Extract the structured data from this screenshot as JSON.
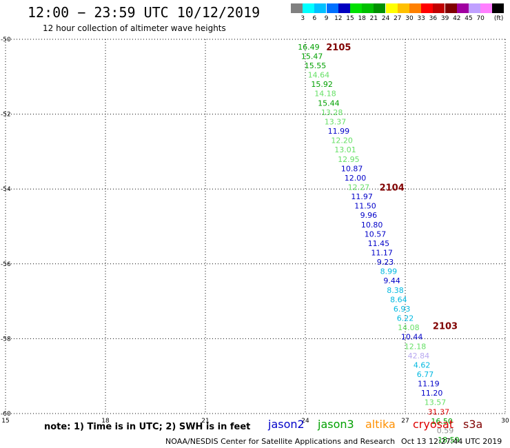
{
  "header": {
    "title": "12:00 − 23:59 UTC 10/12/2019",
    "subtitle": "12 hour collection of altimeter wave heights"
  },
  "legend": {
    "unit": "(ft)",
    "items": [
      {
        "color": "#808080",
        "label": ""
      },
      {
        "color": "#00ffff",
        "label": "3"
      },
      {
        "color": "#00c0ff",
        "label": "6"
      },
      {
        "color": "#0070ff",
        "label": "9"
      },
      {
        "color": "#0000c0",
        "label": "12"
      },
      {
        "color": "#00e000",
        "label": "15"
      },
      {
        "color": "#00c000",
        "label": "18"
      },
      {
        "color": "#009000",
        "label": "21"
      },
      {
        "color": "#ffff00",
        "label": "24"
      },
      {
        "color": "#ffc000",
        "label": "27"
      },
      {
        "color": "#ff8000",
        "label": "30"
      },
      {
        "color": "#ff0000",
        "label": "33"
      },
      {
        "color": "#c00000",
        "label": "36"
      },
      {
        "color": "#800000",
        "label": "39"
      },
      {
        "color": "#a000a0",
        "label": "42"
      },
      {
        "color": "#c0a0ff",
        "label": "45"
      },
      {
        "color": "#ff80ff",
        "label": "70"
      },
      {
        "color": "#000000",
        "label": ""
      }
    ]
  },
  "axes": {
    "x_ticks": [
      "15",
      "18",
      "21",
      "24",
      "27",
      "30"
    ],
    "y_ticks": [
      "-50",
      "-52",
      "-54",
      "-56",
      "-58",
      "-60"
    ],
    "x_range": [
      15,
      30
    ],
    "y_range": [
      -50,
      -60
    ],
    "grid": "dotted"
  },
  "colors": {
    "jason2": "#0000c8",
    "jason3": "#00a000",
    "altika": "#ff9000",
    "cryosat": "#dd0000",
    "s3a": "#800000",
    "lightgreen": "#66e066",
    "cyan": "#00b8e0",
    "lavender": "#b8a8f0",
    "gray": "#909090",
    "time_label": "#800000"
  },
  "observations": [
    {
      "lon": 24.1,
      "lat": -50.2,
      "value": "16.49",
      "color": "#00a000"
    },
    {
      "lon": 24.2,
      "lat": -50.45,
      "value": "15.47",
      "color": "#00a000"
    },
    {
      "lon": 24.3,
      "lat": -50.7,
      "value": "15.55",
      "color": "#00a000"
    },
    {
      "lon": 24.4,
      "lat": -50.95,
      "value": "14.64",
      "color": "#66e066"
    },
    {
      "lon": 24.5,
      "lat": -51.2,
      "value": "15.92",
      "color": "#00a000"
    },
    {
      "lon": 24.6,
      "lat": -51.45,
      "value": "14.18",
      "color": "#66e066"
    },
    {
      "lon": 24.7,
      "lat": -51.7,
      "value": "15.44",
      "color": "#00a000"
    },
    {
      "lon": 24.8,
      "lat": -51.95,
      "value": "13.28",
      "color": "#66e066"
    },
    {
      "lon": 24.9,
      "lat": -52.2,
      "value": "13.37",
      "color": "#66e066"
    },
    {
      "lon": 25.0,
      "lat": -52.45,
      "value": "11.99",
      "color": "#0000c8"
    },
    {
      "lon": 25.1,
      "lat": -52.7,
      "value": "12.20",
      "color": "#66e066"
    },
    {
      "lon": 25.2,
      "lat": -52.95,
      "value": "13.01",
      "color": "#66e066"
    },
    {
      "lon": 25.3,
      "lat": -53.2,
      "value": "12.95",
      "color": "#66e066"
    },
    {
      "lon": 25.4,
      "lat": -53.45,
      "value": "10.87",
      "color": "#0000c8"
    },
    {
      "lon": 25.5,
      "lat": -53.7,
      "value": "12.00",
      "color": "#0000c8"
    },
    {
      "lon": 25.6,
      "lat": -53.95,
      "value": "12.27",
      "color": "#66e066"
    },
    {
      "lon": 25.7,
      "lat": -54.2,
      "value": "11.97",
      "color": "#0000c8"
    },
    {
      "lon": 25.8,
      "lat": -54.45,
      "value": "11.50",
      "color": "#0000c8"
    },
    {
      "lon": 25.9,
      "lat": -54.7,
      "value": "9.96",
      "color": "#0000c8"
    },
    {
      "lon": 26.0,
      "lat": -54.95,
      "value": "10.80",
      "color": "#0000c8"
    },
    {
      "lon": 26.1,
      "lat": -55.2,
      "value": "10.57",
      "color": "#0000c8"
    },
    {
      "lon": 26.2,
      "lat": -55.45,
      "value": "11.45",
      "color": "#0000c8"
    },
    {
      "lon": 26.3,
      "lat": -55.7,
      "value": "11.17",
      "color": "#0000c8"
    },
    {
      "lon": 26.4,
      "lat": -55.95,
      "value": "9.23",
      "color": "#0000c8"
    },
    {
      "lon": 26.5,
      "lat": -56.2,
      "value": "8.99",
      "color": "#00b8e0"
    },
    {
      "lon": 26.6,
      "lat": -56.45,
      "value": "9.44",
      "color": "#0000c8"
    },
    {
      "lon": 26.7,
      "lat": -56.7,
      "value": "8.38",
      "color": "#00b8e0"
    },
    {
      "lon": 26.8,
      "lat": -56.95,
      "value": "8.64",
      "color": "#00b8e0"
    },
    {
      "lon": 26.9,
      "lat": -57.2,
      "value": "6.93",
      "color": "#00b8e0"
    },
    {
      "lon": 27.0,
      "lat": -57.45,
      "value": "6.22",
      "color": "#00b8e0"
    },
    {
      "lon": 27.1,
      "lat": -57.7,
      "value": "14.08",
      "color": "#66e066"
    },
    {
      "lon": 27.2,
      "lat": -57.95,
      "value": "10.44",
      "color": "#0000c8"
    },
    {
      "lon": 27.3,
      "lat": -58.2,
      "value": "12.18",
      "color": "#66e066"
    },
    {
      "lon": 27.4,
      "lat": -58.45,
      "value": "42.84",
      "color": "#b8a8f0"
    },
    {
      "lon": 27.5,
      "lat": -58.7,
      "value": "4.62",
      "color": "#00b8e0"
    },
    {
      "lon": 27.6,
      "lat": -58.95,
      "value": "6.77",
      "color": "#00b8e0"
    },
    {
      "lon": 27.7,
      "lat": -59.2,
      "value": "11.19",
      "color": "#0000c8"
    },
    {
      "lon": 27.8,
      "lat": -59.45,
      "value": "11.20",
      "color": "#0000c8"
    },
    {
      "lon": 27.9,
      "lat": -59.7,
      "value": "13.57",
      "color": "#66e066"
    },
    {
      "lon": 28.0,
      "lat": -59.95,
      "value": "31.37",
      "color": "#dd0000"
    },
    {
      "lon": 28.1,
      "lat": -60.2,
      "value": "16.50",
      "color": "#00a000"
    },
    {
      "lon": 28.2,
      "lat": -60.45,
      "value": "0.59",
      "color": "#909090"
    },
    {
      "lon": 28.3,
      "lat": -60.7,
      "value": "18.59",
      "color": "#00a000"
    }
  ],
  "time_labels": [
    {
      "lon": 25.0,
      "lat": -50.2,
      "label": "2105"
    },
    {
      "lon": 26.6,
      "lat": -53.95,
      "label": "2104"
    },
    {
      "lon": 28.2,
      "lat": -57.65,
      "label": "2103"
    }
  ],
  "footer": {
    "note": "note: 1) Time is in UTC; 2) SWH is in feet",
    "satellites": [
      "jason2",
      "jason3",
      "altika",
      "cryosat",
      "s3a"
    ],
    "credit": "NOAA/NESDIS Center for Satellite Applications and Research",
    "timestamp": "Oct 13 12:27:44 UTC 2019"
  }
}
